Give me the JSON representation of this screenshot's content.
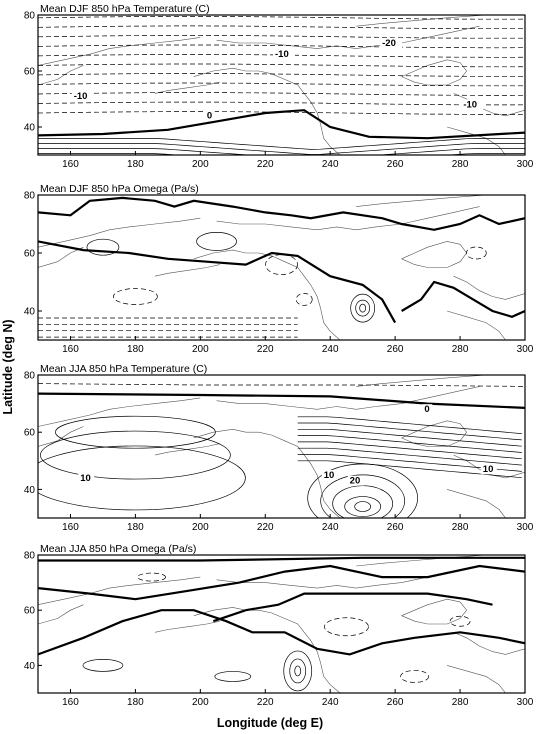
{
  "figure": {
    "y_axis_title": "Latitude (deg N)",
    "x_axis_title": "Longitude (deg E)",
    "x_ticks": [
      "160",
      "180",
      "200",
      "220",
      "240",
      "260",
      "280",
      "300"
    ],
    "y_ticks": [
      "40",
      "60",
      "80"
    ],
    "x_range": [
      150,
      300
    ],
    "y_range": [
      30,
      80
    ]
  },
  "panels": [
    {
      "id": "djf-temperature",
      "title": "Mean DJF 850 hPa Temperature (C)",
      "contour_labels": [
        {
          "text": "-10",
          "lon": 161,
          "lat": 50
        },
        {
          "text": "-10",
          "lon": 223,
          "lat": 65
        },
        {
          "text": "0",
          "lon": 202,
          "lat": 43
        },
        {
          "text": "-20",
          "lon": 256,
          "lat": 69
        },
        {
          "text": "-10",
          "lon": 281,
          "lat": 47
        }
      ]
    },
    {
      "id": "djf-omega",
      "title": "Mean DJF 850 hPa Omega (Pa/s)",
      "contour_labels": []
    },
    {
      "id": "jja-temperature",
      "title": "Mean JJA 850 hPa Temperature (C)",
      "contour_labels": [
        {
          "text": "0",
          "lon": 269,
          "lat": 67
        },
        {
          "text": "10",
          "lon": 163,
          "lat": 43
        },
        {
          "text": "10",
          "lon": 238,
          "lat": 44
        },
        {
          "text": "20",
          "lon": 246,
          "lat": 42
        },
        {
          "text": "10",
          "lon": 287,
          "lat": 46
        }
      ]
    },
    {
      "id": "jja-omega",
      "title": "Mean JJA 850 hPa Omega (Pa/s)",
      "contour_labels": []
    }
  ]
}
